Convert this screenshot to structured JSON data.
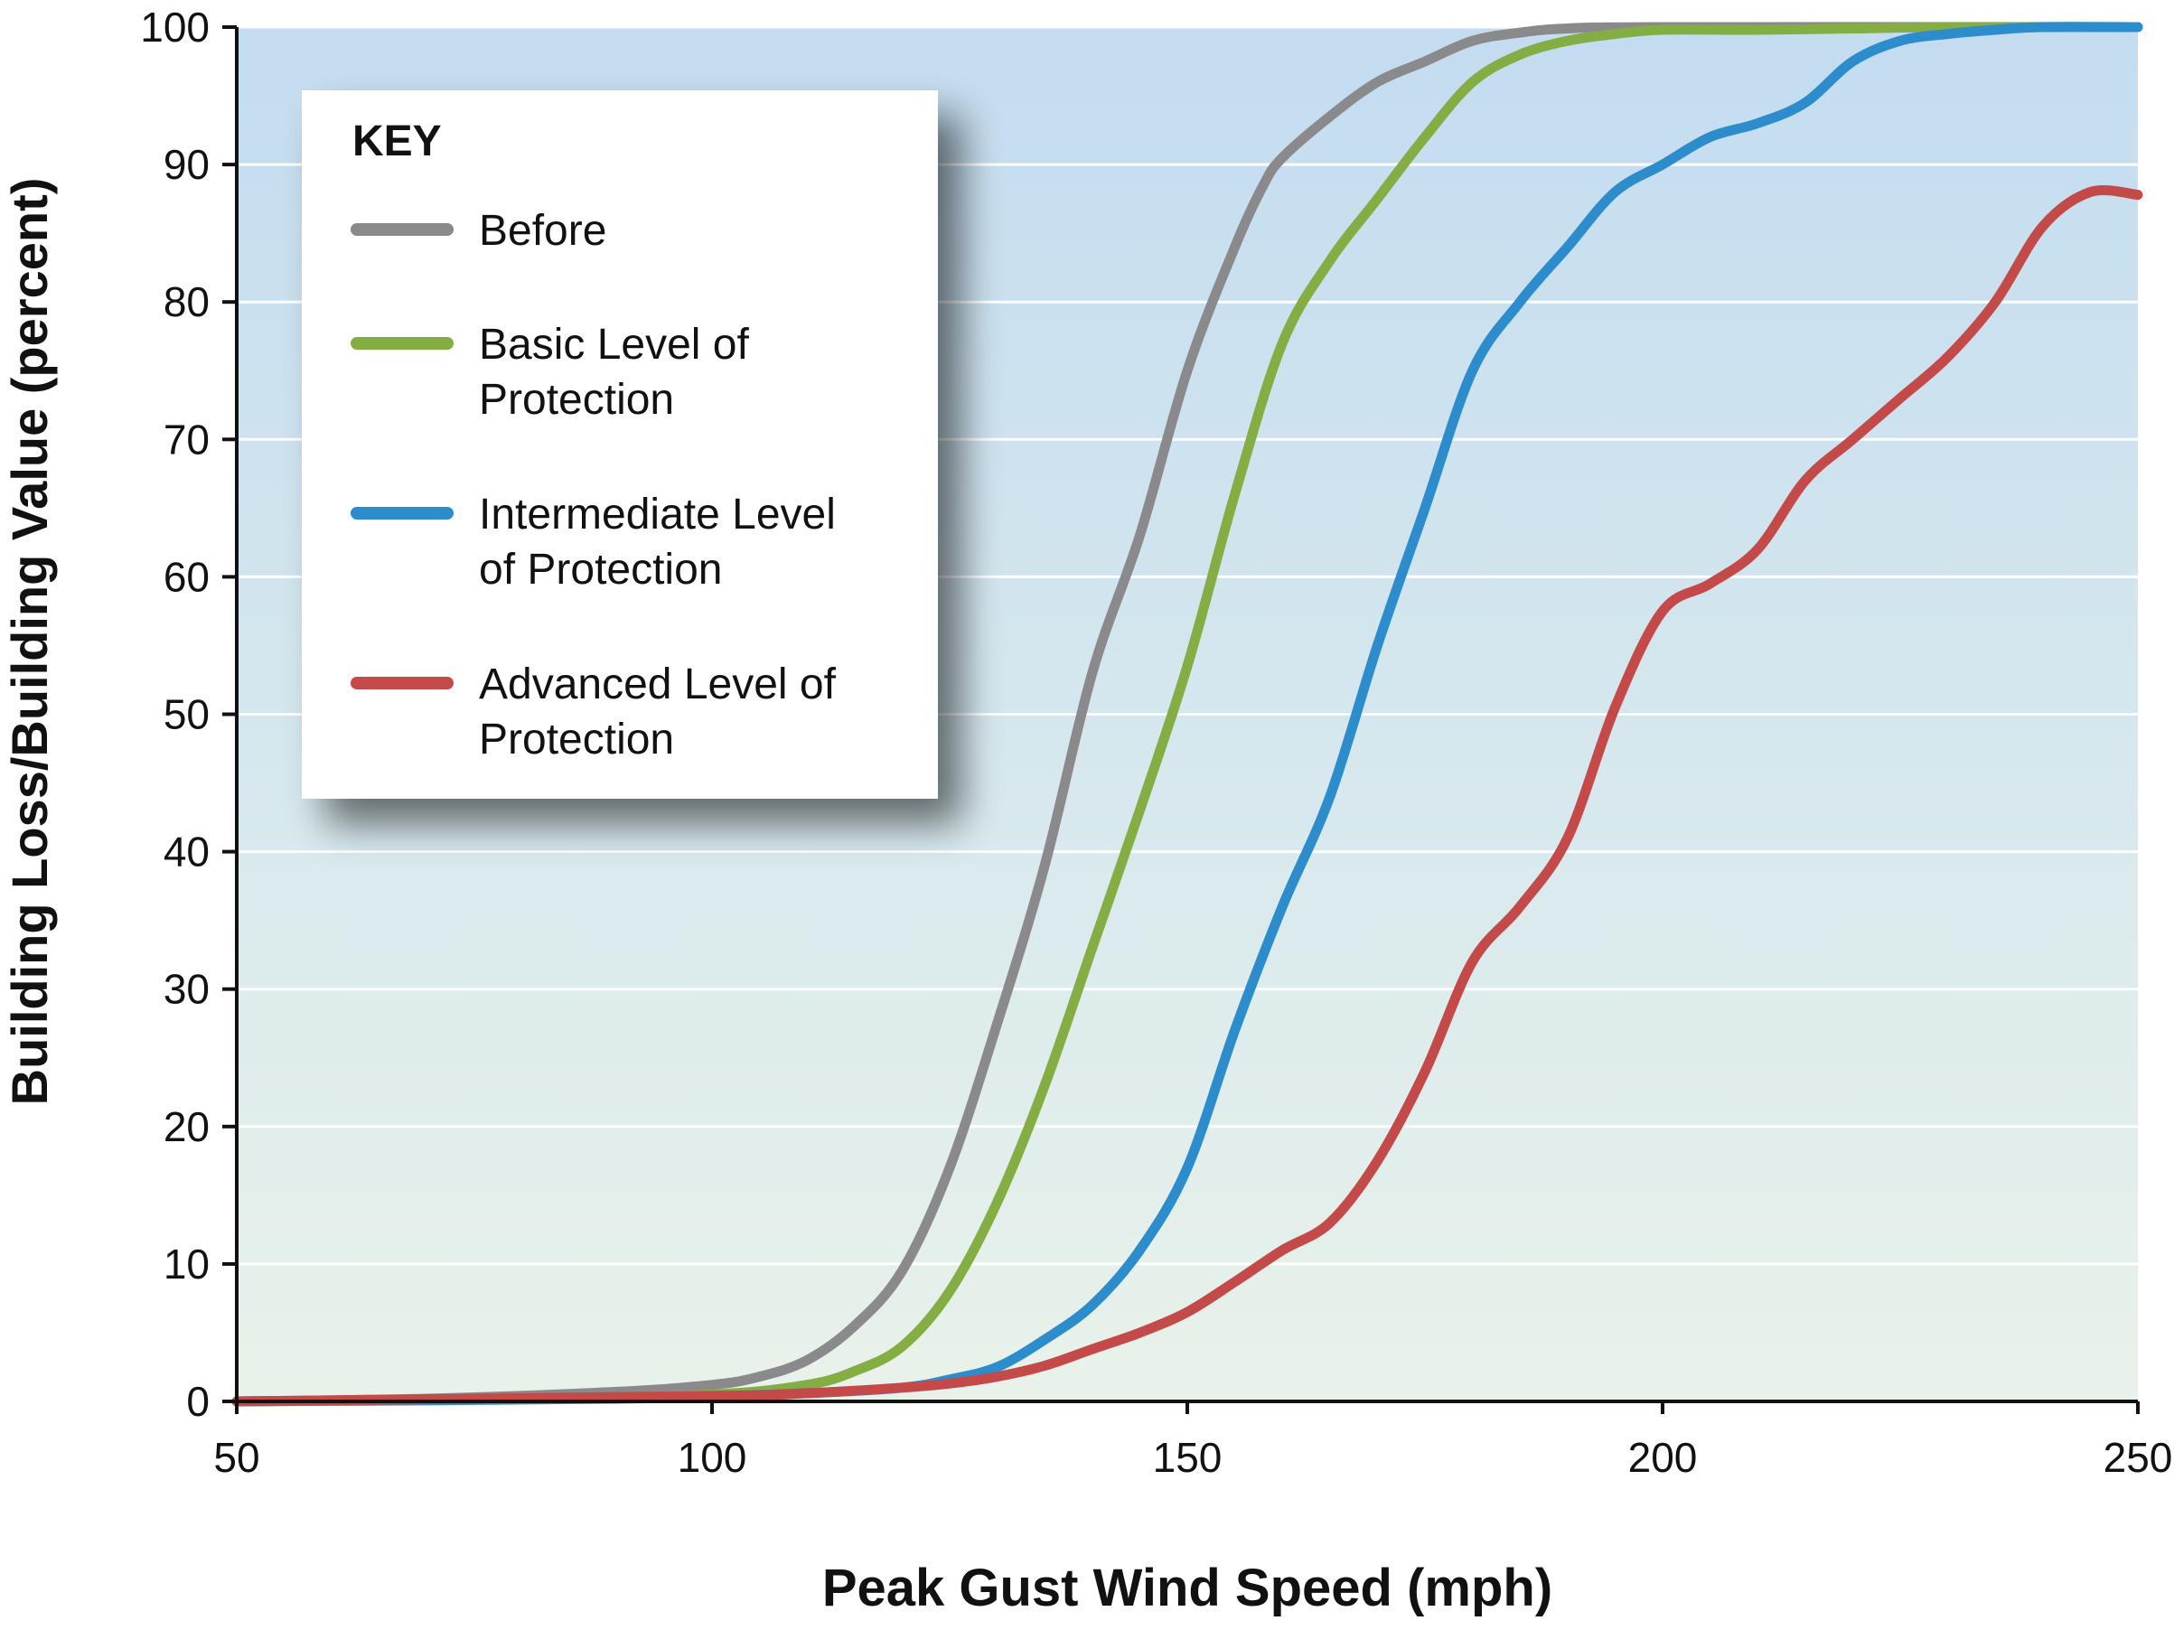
{
  "chart_data": {
    "type": "line",
    "title": "",
    "xlabel": "Peak Gust Wind Speed (mph)",
    "ylabel": "Building Loss/Building Value (percent)",
    "xlim": [
      50,
      250
    ],
    "ylim": [
      0,
      100
    ],
    "x_ticks": [
      50,
      100,
      150,
      200,
      250
    ],
    "y_ticks": [
      0,
      10,
      20,
      30,
      40,
      50,
      60,
      70,
      80,
      90,
      100
    ],
    "grid": "horizontal",
    "legend": {
      "title": "KEY",
      "placement": "top-left"
    },
    "series": [
      {
        "name": "Before",
        "color": "#8a8a8c",
        "points": [
          [
            50,
            0
          ],
          [
            70,
            0.2
          ],
          [
            90,
            0.7
          ],
          [
            100,
            1.2
          ],
          [
            105,
            1.8
          ],
          [
            110,
            3
          ],
          [
            115,
            5.5
          ],
          [
            120,
            9.5
          ],
          [
            125,
            17
          ],
          [
            130,
            27.5
          ],
          [
            135,
            39
          ],
          [
            140,
            53
          ],
          [
            145,
            63
          ],
          [
            150,
            75
          ],
          [
            155,
            84
          ],
          [
            158,
            88.5
          ],
          [
            160,
            90.5
          ],
          [
            165,
            93.5
          ],
          [
            170,
            96
          ],
          [
            175,
            97.5
          ],
          [
            180,
            99
          ],
          [
            185,
            99.6
          ],
          [
            190,
            99.9
          ],
          [
            200,
            100
          ],
          [
            250,
            100
          ]
        ]
      },
      {
        "name": "Basic Level of Protection",
        "color": "#84ad44",
        "points": [
          [
            50,
            0
          ],
          [
            80,
            0.2
          ],
          [
            100,
            0.5
          ],
          [
            110,
            1.2
          ],
          [
            115,
            2.2
          ],
          [
            120,
            4
          ],
          [
            125,
            8
          ],
          [
            130,
            14.5
          ],
          [
            135,
            23
          ],
          [
            140,
            33
          ],
          [
            145,
            43
          ],
          [
            150,
            53.5
          ],
          [
            155,
            66
          ],
          [
            160,
            77
          ],
          [
            165,
            83
          ],
          [
            170,
            87.5
          ],
          [
            175,
            92
          ],
          [
            180,
            96
          ],
          [
            185,
            98
          ],
          [
            190,
            99
          ],
          [
            195,
            99.5
          ],
          [
            200,
            99.8
          ],
          [
            210,
            99.8
          ],
          [
            220,
            99.9
          ],
          [
            230,
            100
          ],
          [
            250,
            100
          ]
        ]
      },
      {
        "name": "Intermediate Level of Protection",
        "color": "#2c8ccc",
        "points": [
          [
            50,
            0
          ],
          [
            90,
            0.2
          ],
          [
            110,
            0.6
          ],
          [
            120,
            1
          ],
          [
            125,
            1.6
          ],
          [
            130,
            2.5
          ],
          [
            135,
            4.5
          ],
          [
            140,
            7
          ],
          [
            145,
            11
          ],
          [
            150,
            17
          ],
          [
            155,
            27
          ],
          [
            160,
            36
          ],
          [
            165,
            44
          ],
          [
            170,
            55
          ],
          [
            175,
            65
          ],
          [
            180,
            75
          ],
          [
            185,
            80
          ],
          [
            190,
            84
          ],
          [
            195,
            88
          ],
          [
            200,
            90
          ],
          [
            205,
            92
          ],
          [
            210,
            93
          ],
          [
            215,
            94.5
          ],
          [
            220,
            97.5
          ],
          [
            225,
            99
          ],
          [
            230,
            99.5
          ],
          [
            235,
            99.8
          ],
          [
            240,
            100
          ],
          [
            250,
            100
          ]
        ]
      },
      {
        "name": "Advanced Level of Protection",
        "color": "#c44a4a",
        "points": [
          [
            50,
            0
          ],
          [
            100,
            0.4
          ],
          [
            110,
            0.6
          ],
          [
            120,
            1
          ],
          [
            125,
            1.3
          ],
          [
            130,
            1.8
          ],
          [
            135,
            2.6
          ],
          [
            140,
            3.8
          ],
          [
            145,
            5
          ],
          [
            150,
            6.5
          ],
          [
            155,
            8.7
          ],
          [
            160,
            11
          ],
          [
            165,
            13
          ],
          [
            170,
            17.5
          ],
          [
            175,
            24
          ],
          [
            180,
            32
          ],
          [
            185,
            36
          ],
          [
            190,
            41
          ],
          [
            195,
            50.5
          ],
          [
            200,
            57.5
          ],
          [
            205,
            59.5
          ],
          [
            210,
            62
          ],
          [
            215,
            67
          ],
          [
            220,
            70
          ],
          [
            225,
            73
          ],
          [
            230,
            76
          ],
          [
            235,
            80
          ],
          [
            240,
            85.5
          ],
          [
            245,
            88
          ],
          [
            250,
            87.8
          ]
        ]
      }
    ]
  }
}
